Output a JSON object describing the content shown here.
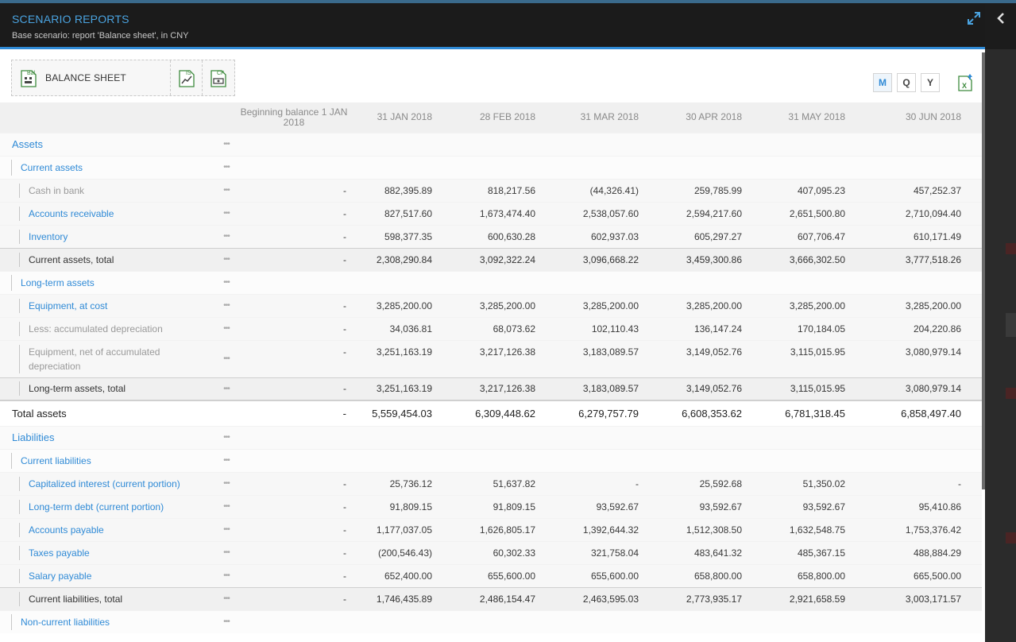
{
  "header": {
    "title": "SCENARIO REPORTS",
    "subtitle": "Base scenario: report 'Balance sheet', in CNY"
  },
  "tabs": [
    {
      "label": "BALANCE SHEET",
      "badge": "Bal"
    },
    {
      "label": "",
      "badge": "IS"
    },
    {
      "label": "",
      "badge": "CF"
    }
  ],
  "periods": {
    "m": "M",
    "q": "Q",
    "y": "Y",
    "active": "M"
  },
  "table": {
    "columns": [
      "Beginning balance 1 JAN 2018",
      "31 JAN 2018",
      "28 FEB 2018",
      "31 MAR 2018",
      "30 APR 2018",
      "31 MAY 2018",
      "30 JUN 2018"
    ],
    "dots": "•••",
    "rows": [
      {
        "label": "Assets",
        "type": "lvl0",
        "style": "link",
        "values": []
      },
      {
        "label": "Current assets",
        "type": "lvl1",
        "style": "link",
        "values": []
      },
      {
        "label": "Cash in bank",
        "type": "lvl2",
        "style": "muted",
        "values": [
          "-",
          "882,395.89",
          "818,217.56",
          "(44,326.41)",
          "259,785.99",
          "407,095.23",
          "457,252.37"
        ]
      },
      {
        "label": "Accounts receivable",
        "type": "lvl2",
        "style": "link",
        "values": [
          "-",
          "827,517.60",
          "1,673,474.40",
          "2,538,057.60",
          "2,594,217.60",
          "2,651,500.80",
          "2,710,094.40"
        ]
      },
      {
        "label": "Inventory",
        "type": "lvl2",
        "style": "link",
        "values": [
          "-",
          "598,377.35",
          "600,630.28",
          "602,937.03",
          "605,297.27",
          "607,706.47",
          "610,171.49"
        ]
      },
      {
        "label": "Current assets, total",
        "type": "total",
        "style": "dark",
        "values": [
          "-",
          "2,308,290.84",
          "3,092,322.24",
          "3,096,668.22",
          "3,459,300.86",
          "3,666,302.50",
          "3,777,518.26"
        ]
      },
      {
        "label": "Long-term assets",
        "type": "lvl1",
        "style": "link",
        "values": []
      },
      {
        "label": "Equipment, at cost",
        "type": "lvl2",
        "style": "link",
        "values": [
          "-",
          "3,285,200.00",
          "3,285,200.00",
          "3,285,200.00",
          "3,285,200.00",
          "3,285,200.00",
          "3,285,200.00"
        ]
      },
      {
        "label": "Less: accumulated depreciation",
        "type": "lvl2",
        "style": "muted",
        "values": [
          "-",
          "34,036.81",
          "68,073.62",
          "102,110.43",
          "136,147.24",
          "170,184.05",
          "204,220.86"
        ]
      },
      {
        "label": "Equipment, net of accumulated depreciation",
        "type": "lvl2",
        "style": "muted",
        "tall": true,
        "values": [
          "-",
          "3,251,163.19",
          "3,217,126.38",
          "3,183,089.57",
          "3,149,052.76",
          "3,115,015.95",
          "3,080,979.14"
        ]
      },
      {
        "label": "Long-term assets, total",
        "type": "total",
        "style": "dark",
        "values": [
          "-",
          "3,251,163.19",
          "3,217,126.38",
          "3,183,089.57",
          "3,149,052.76",
          "3,115,015.95",
          "3,080,979.14"
        ]
      },
      {
        "label": "Total assets",
        "type": "grand",
        "style": "dark",
        "values": [
          "-",
          "5,559,454.03",
          "6,309,448.62",
          "6,279,757.79",
          "6,608,353.62",
          "6,781,318.45",
          "6,858,497.40"
        ]
      },
      {
        "label": "Liabilities",
        "type": "lvl0",
        "style": "link",
        "values": []
      },
      {
        "label": "Current liabilities",
        "type": "lvl1",
        "style": "link",
        "values": []
      },
      {
        "label": "Capitalized interest (current portion)",
        "type": "lvl2",
        "style": "link",
        "values": [
          "-",
          "25,736.12",
          "51,637.82",
          "-",
          "25,592.68",
          "51,350.02",
          "-"
        ]
      },
      {
        "label": "Long-term debt (current portion)",
        "type": "lvl2",
        "style": "link",
        "values": [
          "-",
          "91,809.15",
          "91,809.15",
          "93,592.67",
          "93,592.67",
          "93,592.67",
          "95,410.86"
        ]
      },
      {
        "label": "Accounts payable",
        "type": "lvl2",
        "style": "link",
        "values": [
          "-",
          "1,177,037.05",
          "1,626,805.17",
          "1,392,644.32",
          "1,512,308.50",
          "1,632,548.75",
          "1,753,376.42"
        ]
      },
      {
        "label": "Taxes payable",
        "type": "lvl2",
        "style": "link",
        "values": [
          "-",
          "(200,546.43)",
          "60,302.33",
          "321,758.04",
          "483,641.32",
          "485,367.15",
          "488,884.29"
        ]
      },
      {
        "label": "Salary payable",
        "type": "lvl2",
        "style": "link",
        "values": [
          "-",
          "652,400.00",
          "655,600.00",
          "655,600.00",
          "658,800.00",
          "658,800.00",
          "665,500.00"
        ]
      },
      {
        "label": "Current liabilities, total",
        "type": "total",
        "style": "dark",
        "values": [
          "-",
          "1,746,435.89",
          "2,486,154.47",
          "2,463,595.03",
          "2,773,935.17",
          "2,921,658.59",
          "3,003,171.57"
        ]
      },
      {
        "label": "Non-current liabilities",
        "type": "lvl1",
        "style": "link",
        "values": []
      }
    ]
  }
}
